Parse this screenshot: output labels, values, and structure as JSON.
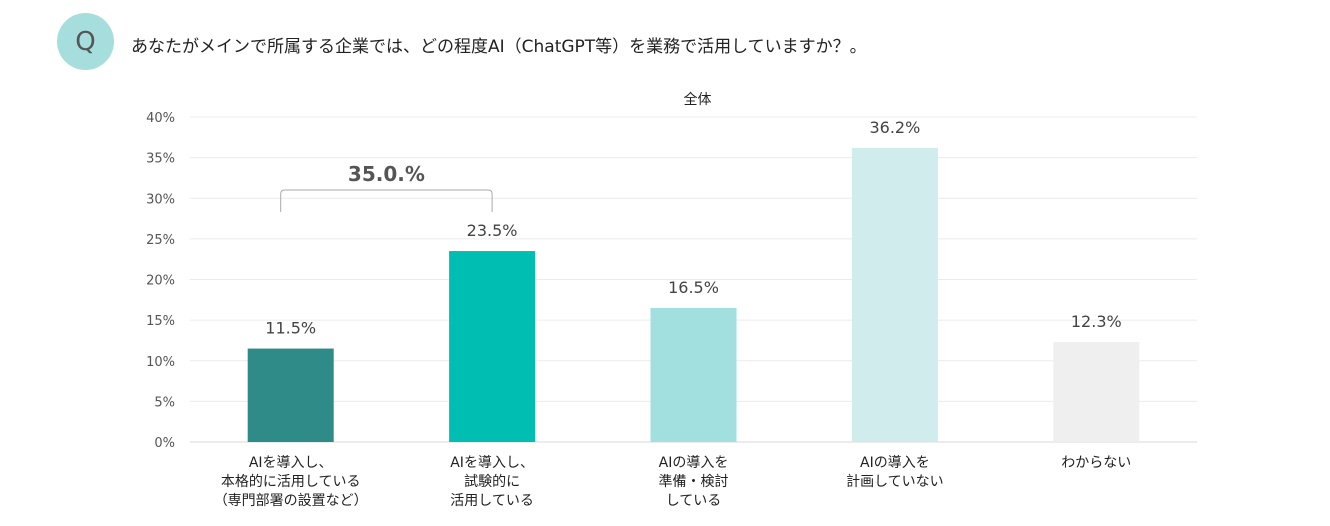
{
  "question": {
    "badge": "Q",
    "text": "あなたがメインで所属する企業では、どの程度AI（ChatGPT等）を業務で活用していますか？。"
  },
  "chart_data": {
    "type": "bar",
    "title": "全体",
    "categories": [
      [
        "AIを導入し、",
        "本格的に活用している",
        "（専門部署の設置など）"
      ],
      [
        "AIを導入し、",
        "試験的に",
        "活用している"
      ],
      [
        "AIの導入を",
        "準備・検討",
        "している"
      ],
      [
        "AIの導入を",
        "計画していない"
      ],
      [
        "わからない"
      ]
    ],
    "values": [
      11.5,
      23.5,
      16.5,
      36.2,
      12.3
    ],
    "value_labels": [
      "11.5%",
      "23.5%",
      "16.5%",
      "36.2%",
      "12.3%"
    ],
    "bar_colors": [
      "#2e8b87",
      "#00bfb2",
      "#a1e0de",
      "#d0eced",
      "#efefef"
    ],
    "ylim": [
      0,
      40
    ],
    "y_ticks": [
      0,
      5,
      10,
      15,
      20,
      25,
      30,
      35,
      40
    ],
    "y_tick_labels": [
      "0%",
      "5%",
      "10%",
      "15%",
      "20%",
      "25%",
      "30%",
      "35%",
      "40%"
    ],
    "grid": true,
    "annotations": [
      {
        "type": "bracket",
        "spans_categories": [
          0,
          1
        ],
        "label": "35.0.%"
      }
    ]
  }
}
